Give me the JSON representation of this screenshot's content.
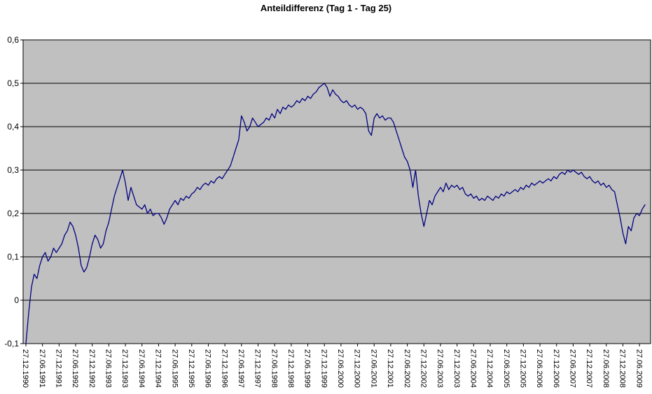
{
  "chart_data": {
    "type": "line",
    "title": "Anteildifferenz (Tag 1 - Tag 25)",
    "legend": "none",
    "grid": "horizontal",
    "plot_bg": "#c0c0c0",
    "grid_color": "#000000",
    "ylim": [
      -0.1,
      0.6
    ],
    "y_tick_values": [
      0.6,
      0.5,
      0.4,
      0.3,
      0.2,
      0.1,
      0,
      -0.1
    ],
    "y_tick_labels": [
      "0,6",
      "0,5",
      "0,4",
      "0,3",
      "0,2",
      "0,1",
      "0",
      "-0,1"
    ],
    "x_ticks_every_n_points": 6,
    "x_tick_labels": [
      "27.12.1990",
      "27.06.1991",
      "27.12.1991",
      "27.06.1992",
      "27.12.1992",
      "27.06.1993",
      "27.12.1993",
      "27.06.1994",
      "27.12.1994",
      "27.06.1995",
      "27.12.1995",
      "27.06.1996",
      "27.12.1996",
      "27.06.1997",
      "27.12.1997",
      "27.06.1998",
      "27.12.1998",
      "27.06.1999",
      "27.12.1999",
      "27.06.2000",
      "27.12.2000",
      "27.06.2001",
      "27.12.2001",
      "27.06.2002",
      "27.12.2002",
      "27.06.2003",
      "27.12.2003",
      "27.06.2004",
      "27.12.2004",
      "27.06.2005",
      "27.12.2005",
      "27.06.2006",
      "27.12.2006",
      "27.06.2007",
      "27.12.2007",
      "27.06.2008",
      "27.12.2008",
      "27.06.2009"
    ],
    "sampling": "monthly values, one point per month from 27.12.1990",
    "series": [
      {
        "name": "Anteildifferenz (Tag 1 - Tag 25)",
        "color": "#000080",
        "values": [
          -0.1,
          -0.03,
          0.03,
          0.06,
          0.05,
          0.08,
          0.1,
          0.11,
          0.09,
          0.1,
          0.12,
          0.11,
          0.12,
          0.13,
          0.15,
          0.16,
          0.18,
          0.17,
          0.15,
          0.12,
          0.08,
          0.065,
          0.075,
          0.1,
          0.13,
          0.15,
          0.14,
          0.12,
          0.13,
          0.16,
          0.18,
          0.21,
          0.24,
          0.26,
          0.28,
          0.3,
          0.27,
          0.23,
          0.26,
          0.24,
          0.22,
          0.215,
          0.21,
          0.22,
          0.2,
          0.21,
          0.195,
          0.2,
          0.2,
          0.19,
          0.175,
          0.19,
          0.21,
          0.22,
          0.23,
          0.22,
          0.235,
          0.23,
          0.24,
          0.235,
          0.245,
          0.25,
          0.26,
          0.255,
          0.265,
          0.27,
          0.265,
          0.275,
          0.27,
          0.28,
          0.285,
          0.28,
          0.29,
          0.3,
          0.31,
          0.33,
          0.35,
          0.37,
          0.425,
          0.41,
          0.39,
          0.4,
          0.42,
          0.41,
          0.4,
          0.405,
          0.41,
          0.42,
          0.415,
          0.43,
          0.42,
          0.44,
          0.43,
          0.445,
          0.44,
          0.45,
          0.445,
          0.45,
          0.46,
          0.455,
          0.465,
          0.46,
          0.47,
          0.465,
          0.475,
          0.48,
          0.49,
          0.495,
          0.5,
          0.49,
          0.47,
          0.485,
          0.475,
          0.47,
          0.46,
          0.455,
          0.46,
          0.45,
          0.445,
          0.45,
          0.44,
          0.445,
          0.44,
          0.43,
          0.39,
          0.38,
          0.42,
          0.43,
          0.42,
          0.425,
          0.415,
          0.42,
          0.42,
          0.41,
          0.39,
          0.37,
          0.35,
          0.33,
          0.32,
          0.3,
          0.26,
          0.3,
          0.24,
          0.2,
          0.17,
          0.2,
          0.23,
          0.22,
          0.24,
          0.25,
          0.26,
          0.25,
          0.27,
          0.255,
          0.265,
          0.26,
          0.265,
          0.255,
          0.26,
          0.245,
          0.24,
          0.245,
          0.235,
          0.24,
          0.23,
          0.235,
          0.23,
          0.24,
          0.235,
          0.23,
          0.24,
          0.235,
          0.245,
          0.24,
          0.25,
          0.245,
          0.25,
          0.255,
          0.25,
          0.26,
          0.255,
          0.265,
          0.26,
          0.27,
          0.265,
          0.27,
          0.275,
          0.27,
          0.275,
          0.28,
          0.275,
          0.285,
          0.28,
          0.29,
          0.295,
          0.29,
          0.3,
          0.295,
          0.3,
          0.295,
          0.29,
          0.295,
          0.285,
          0.28,
          0.285,
          0.275,
          0.27,
          0.275,
          0.265,
          0.27,
          0.26,
          0.265,
          0.255,
          0.25,
          0.22,
          0.19,
          0.155,
          0.13,
          0.17,
          0.16,
          0.19,
          0.2,
          0.195,
          0.21,
          0.22
        ]
      }
    ]
  }
}
